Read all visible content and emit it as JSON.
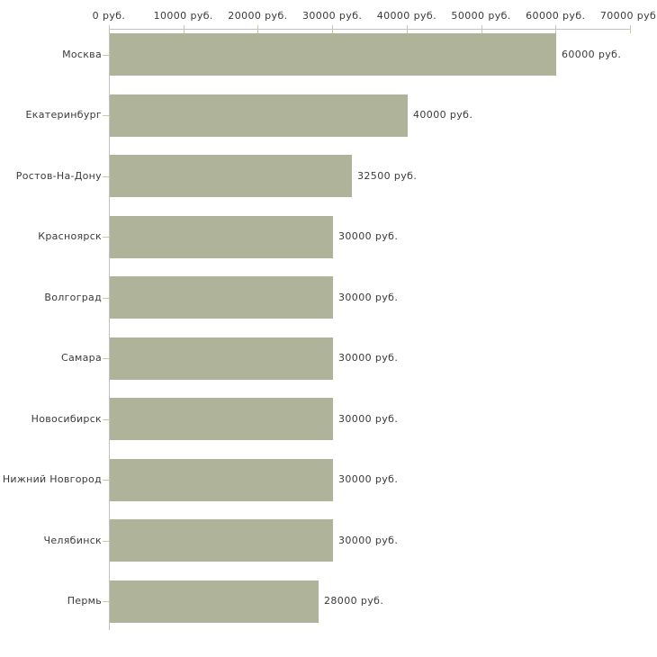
{
  "chart_data": {
    "type": "bar",
    "orientation": "horizontal",
    "title": "",
    "xlabel": "",
    "ylabel": "",
    "categories": [
      "Москва",
      "Екатеринбург",
      "Ростов-На-Дону",
      "Красноярск",
      "Волгоград",
      "Самара",
      "Новосибирск",
      "Нижний Новгород",
      "Челябинск",
      "Пермь"
    ],
    "values": [
      60000,
      40000,
      32500,
      30000,
      30000,
      30000,
      30000,
      30000,
      30000,
      28000
    ],
    "value_labels": [
      "60000 руб.",
      "40000 руб.",
      "32500 руб.",
      "30000 руб.",
      "30000 руб.",
      "30000 руб.",
      "30000 руб.",
      "30000 руб.",
      "30000 руб.",
      "28000 руб."
    ],
    "xlim": [
      0,
      70000
    ],
    "x_tick_values": [
      0,
      10000,
      20000,
      30000,
      40000,
      50000,
      60000,
      70000
    ],
    "x_tick_labels": [
      "0 руб.",
      "10000 руб.",
      "20000 руб.",
      "30000 руб.",
      "40000 руб.",
      "50000 руб.",
      "60000 руб.",
      "70000 руб."
    ],
    "unit_suffix": " руб.",
    "grid": false,
    "legend": null,
    "colors": {
      "bar": "#aeb399",
      "axis": "#c2c2c2",
      "tick": "#c9c9a2",
      "text": "#3a3a3a",
      "background": "#ffffff"
    }
  }
}
